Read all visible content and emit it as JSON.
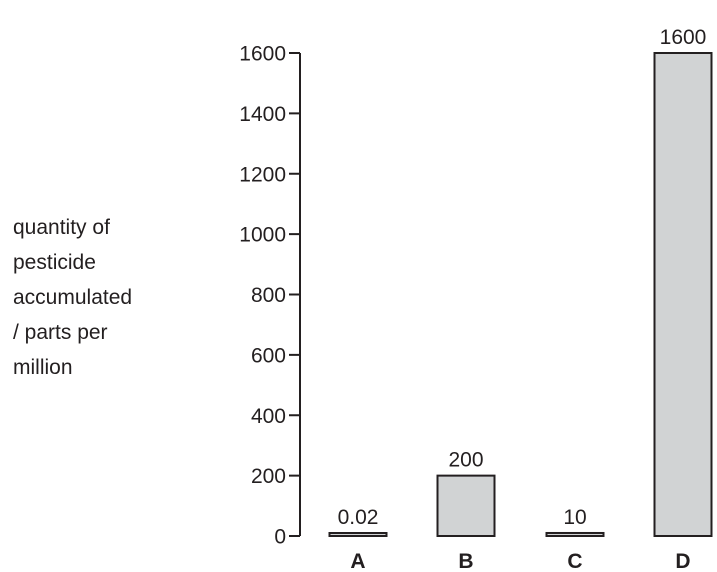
{
  "chart_data": {
    "type": "bar",
    "categories": [
      "A",
      "B",
      "C",
      "D"
    ],
    "values": [
      0.02,
      200,
      10,
      1600
    ],
    "data_labels": [
      "0.02",
      "200",
      "10",
      "1600"
    ],
    "ylabel": [
      "quantity of",
      "pesticide",
      "accumulated",
      "/ parts per",
      "million"
    ],
    "xlabel": "",
    "title": "",
    "ylim": [
      0,
      1600
    ],
    "yticks": [
      0,
      200,
      400,
      600,
      800,
      1000,
      1200,
      1400,
      1600
    ],
    "grid": false,
    "legend": "none",
    "colors": {
      "bar_fill": "#d1d3d4",
      "bar_stroke": "#231f20",
      "axis": "#231f20",
      "text": "#231f20"
    }
  }
}
